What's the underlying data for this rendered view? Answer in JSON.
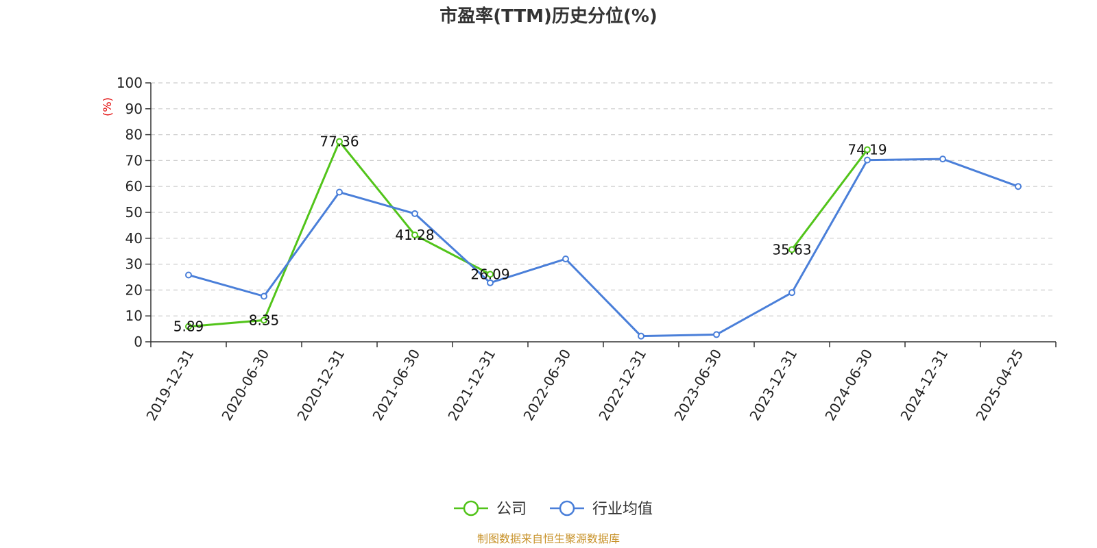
{
  "chart_data": {
    "type": "line",
    "title": "市盈率(TTM)历史分位(%)",
    "ylabel": "(%)",
    "ylim": [
      0,
      100
    ],
    "y_ticks": [
      0,
      10,
      20,
      30,
      40,
      50,
      60,
      70,
      80,
      90,
      100
    ],
    "grid": true,
    "legend_position": "bottom-center",
    "categories": [
      "2019-12-31",
      "2020-06-30",
      "2020-12-31",
      "2021-06-30",
      "2021-12-31",
      "2022-06-30",
      "2022-12-31",
      "2023-06-30",
      "2023-12-31",
      "2024-06-30",
      "2024-12-31",
      "2025-04-25"
    ],
    "series": [
      {
        "name": "公司",
        "color": "#52c41a",
        "values": [
          5.89,
          8.35,
          77.36,
          41.28,
          26.09,
          null,
          null,
          null,
          35.63,
          74.19,
          null,
          null
        ],
        "show_labels": true
      },
      {
        "name": "行业均值",
        "color": "#4a7fd9",
        "values": [
          25.8,
          17.6,
          57.8,
          49.5,
          22.8,
          32.0,
          2.2,
          2.8,
          19.0,
          70.2,
          70.6,
          60.0
        ],
        "show_labels": false
      }
    ],
    "source": "制图数据来自恒生聚源数据库"
  },
  "colors": {
    "unit_label": "#e00000",
    "source_text": "#c8932b",
    "grid": "#cccccc",
    "axis": "#333333"
  }
}
